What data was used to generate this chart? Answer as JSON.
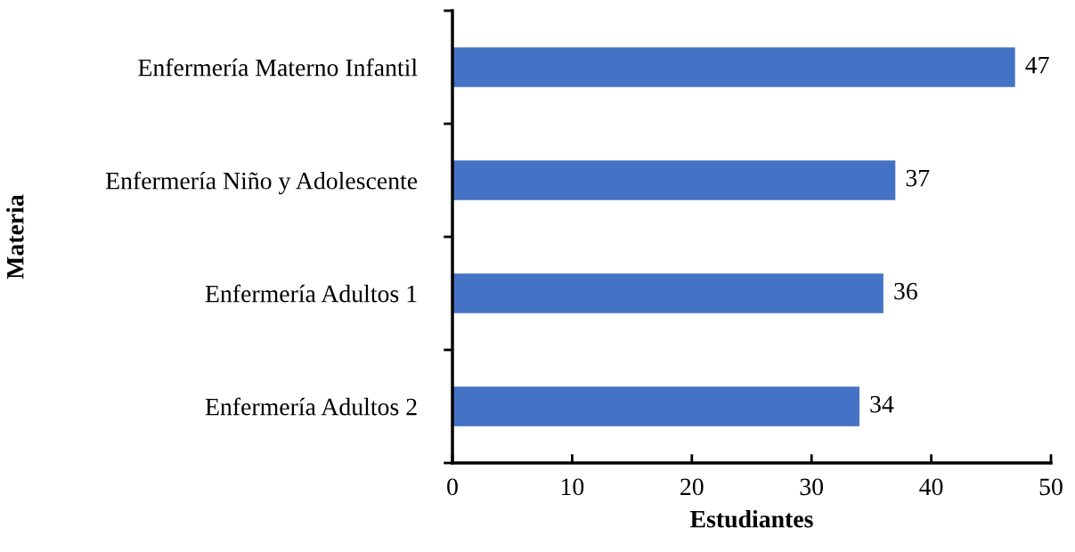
{
  "chart_data": {
    "type": "bar",
    "orientation": "horizontal",
    "xlabel": "Estudiantes",
    "ylabel": "Materia",
    "categories": [
      "Enfermería Materno Infantil",
      "Enfermería Niño y Adolescente",
      "Enfermería Adultos 1",
      "Enfermería Adultos 2"
    ],
    "values": [
      47,
      37,
      36,
      34
    ],
    "color": "#4472c4",
    "data_labels": true,
    "xlim": [
      0,
      50
    ],
    "xticks": [
      0,
      10,
      20,
      30,
      40,
      50
    ],
    "grid": false,
    "legend": false
  }
}
